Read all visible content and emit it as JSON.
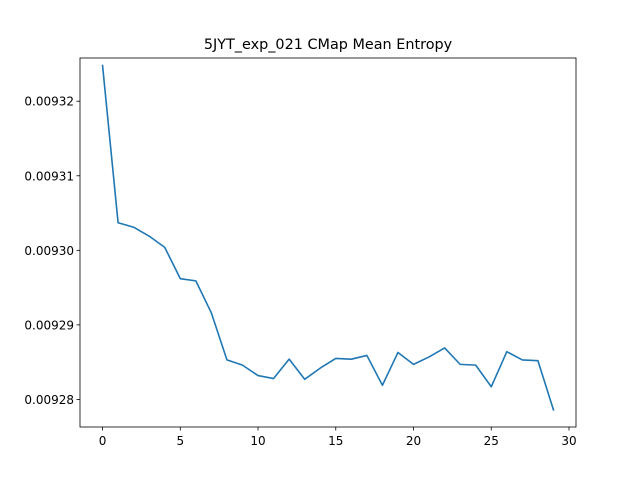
{
  "chart_data": {
    "type": "line",
    "title": "5JYT_exp_021 CMap Mean Entropy",
    "xlabel": "",
    "ylabel": "",
    "xlim": [
      -1.45,
      30.45
    ],
    "ylim": [
      0.0092763,
      0.0093258
    ],
    "grid": false,
    "legend": "none",
    "x_ticks": [
      0,
      5,
      10,
      15,
      20,
      25,
      30
    ],
    "x_tick_labels": [
      "0",
      "5",
      "10",
      "15",
      "20",
      "25",
      "30"
    ],
    "y_ticks": [
      0.00928,
      0.00929,
      0.0093,
      0.00931,
      0.00932
    ],
    "y_tick_labels": [
      "0.00928",
      "0.00929",
      "0.00930",
      "0.00931",
      "0.00932"
    ],
    "series": [
      {
        "name": "",
        "color": "#1f77b4",
        "x": [
          0,
          1,
          2,
          3,
          4,
          5,
          6,
          7,
          8,
          9,
          10,
          11,
          12,
          13,
          14,
          15,
          16,
          17,
          18,
          19,
          20,
          21,
          22,
          23,
          24,
          25,
          26,
          27,
          28,
          29
        ],
        "values": [
          0.0093248,
          0.0093037,
          0.0093031,
          0.0093019,
          0.0093004,
          0.0092962,
          0.0092959,
          0.0092916,
          0.0092853,
          0.0092846,
          0.0092832,
          0.0092828,
          0.0092854,
          0.0092827,
          0.0092842,
          0.0092855,
          0.0092854,
          0.0092859,
          0.0092819,
          0.0092863,
          0.0092847,
          0.0092857,
          0.0092869,
          0.0092847,
          0.0092846,
          0.0092817,
          0.0092864,
          0.0092853,
          0.0092852,
          0.0092786
        ]
      }
    ]
  }
}
